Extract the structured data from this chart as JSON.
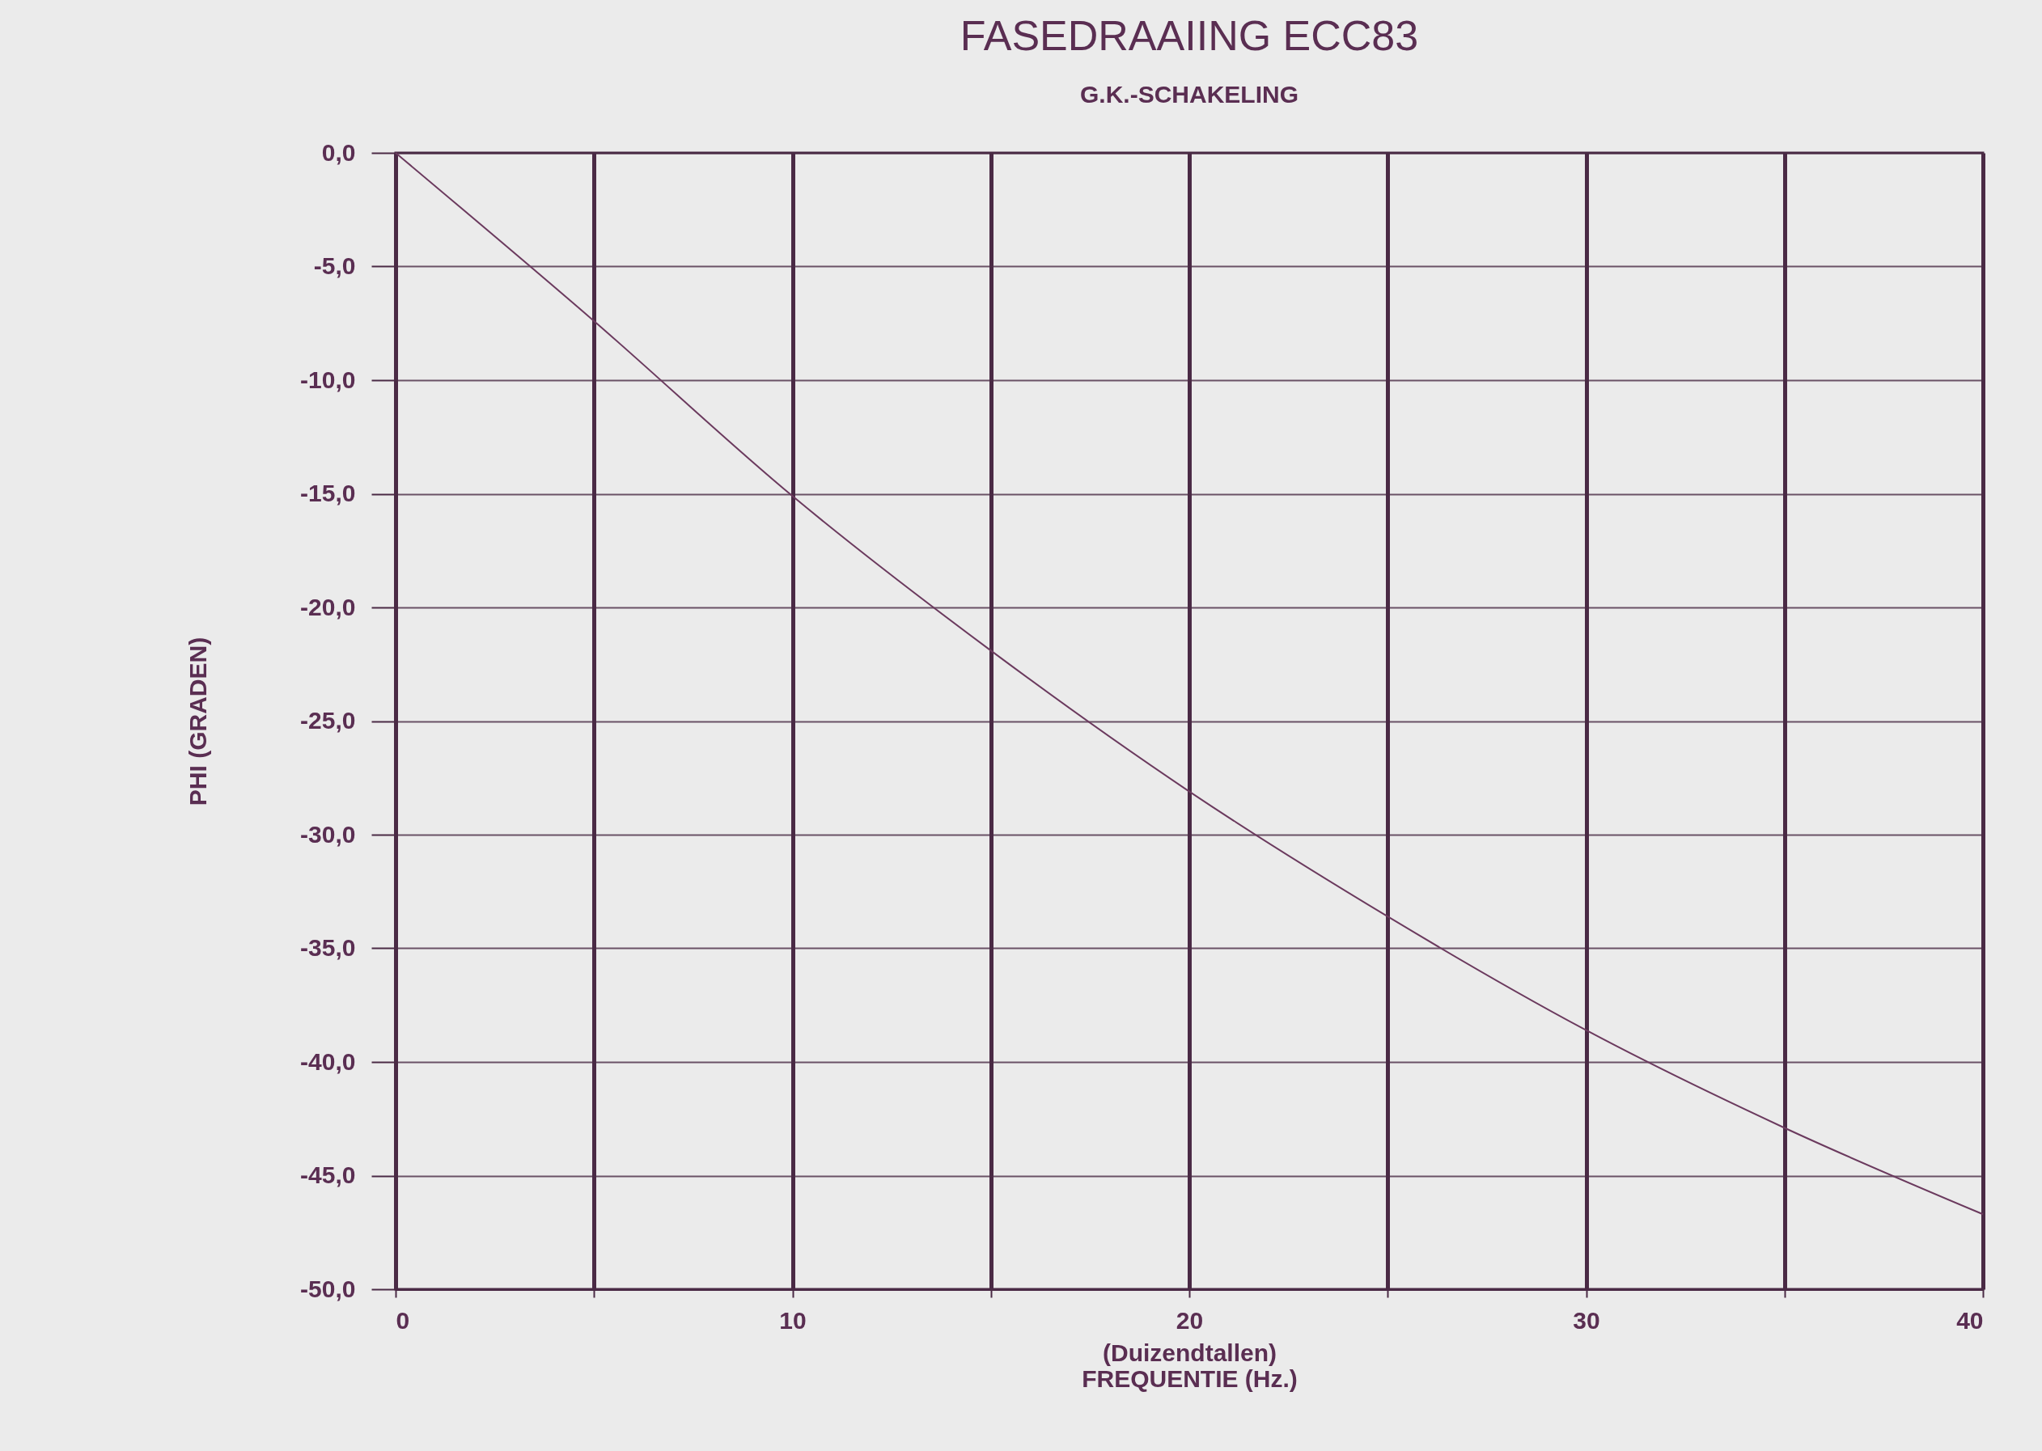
{
  "chart_data": {
    "type": "line",
    "title": "FASEDRAAIING ECC83",
    "subtitle": "G.K.-SCHAKELING",
    "xlabel": "(Duizendtallen)\nFREQUENTIE (Hz.)",
    "ylabel": "PHI (GRADEN)",
    "x": [
      0,
      5,
      10,
      15,
      20,
      25,
      30,
      35,
      40
    ],
    "series": [
      {
        "color": "#6b3a5e",
        "values": [
          0,
          -7.4,
          -15.1,
          -21.9,
          -28.1,
          -33.6,
          -38.6,
          -42.9,
          -46.7
        ]
      }
    ],
    "xlim": [
      0,
      40
    ],
    "ylim": [
      -50,
      0
    ],
    "xticks": [
      0,
      {
        "value": 5,
        "label": null
      },
      10,
      {
        "value": 15,
        "label": null
      },
      20,
      {
        "value": 25,
        "label": null
      },
      30,
      {
        "value": 35,
        "label": null
      },
      40
    ],
    "yticks": [
      {
        "value": 0,
        "label": "0,0"
      },
      {
        "value": -5,
        "label": "-5,0"
      },
      {
        "value": -10,
        "label": "-10,0"
      },
      {
        "value": -15,
        "label": "-15,0"
      },
      {
        "value": -20,
        "label": "-20,0"
      },
      {
        "value": -25,
        "label": "-25,0"
      },
      {
        "value": -30,
        "label": "-30,0"
      },
      {
        "value": -35,
        "label": "-35,0"
      },
      {
        "value": -40,
        "label": "-40,0"
      },
      {
        "value": -45,
        "label": "-45,0"
      },
      {
        "value": -50,
        "label": "-50,0"
      }
    ],
    "grid": true,
    "marker": "none",
    "line_style": "solid"
  }
}
